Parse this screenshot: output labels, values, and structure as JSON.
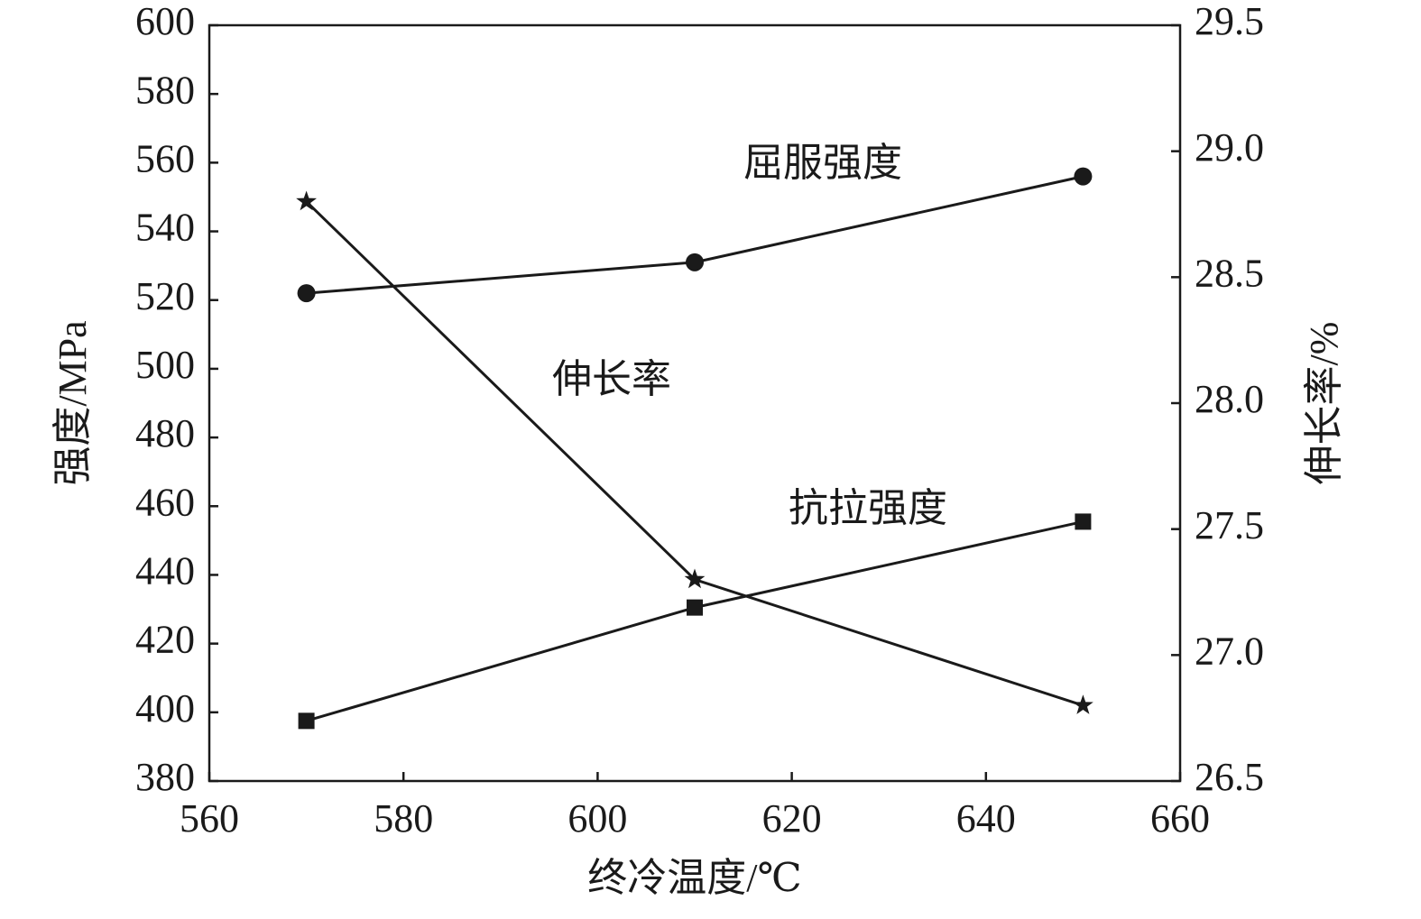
{
  "chart_data": {
    "type": "line",
    "x_label": "终冷温度/℃",
    "y_label": "强度/MPa",
    "y2_label": "伸长率/%",
    "x": [
      570,
      610,
      650
    ],
    "series": [
      {
        "name": "屈服强度",
        "color": "#1a1a1a",
        "marker": "circle",
        "values": [
          522,
          531,
          556
        ]
      },
      {
        "name": "抗拉强度",
        "color": "#1a1a1a",
        "marker": "square",
        "values": [
          397.5,
          430.5,
          455.5
        ]
      },
      {
        "name": "伸长率",
        "color": "#1a1a1a",
        "marker": "star",
        "axis": "y2",
        "values": [
          28.8,
          27.3,
          26.8
        ]
      }
    ],
    "xlim": [
      560,
      660
    ],
    "xticks": [
      560,
      580,
      600,
      620,
      640,
      660
    ],
    "ylim": [
      380,
      600
    ],
    "yticks": [
      380,
      400,
      420,
      440,
      460,
      480,
      500,
      520,
      540,
      560,
      580,
      600
    ],
    "y2lim": [
      26.5,
      29.5
    ],
    "y2ticks": [
      26.5,
      {
        "value": 27,
        "label": "27.0"
      },
      27.5,
      {
        "value": 28,
        "label": "28.0"
      },
      28.5,
      {
        "value": 29,
        "label": "29.0"
      },
      29.5
    ]
  }
}
